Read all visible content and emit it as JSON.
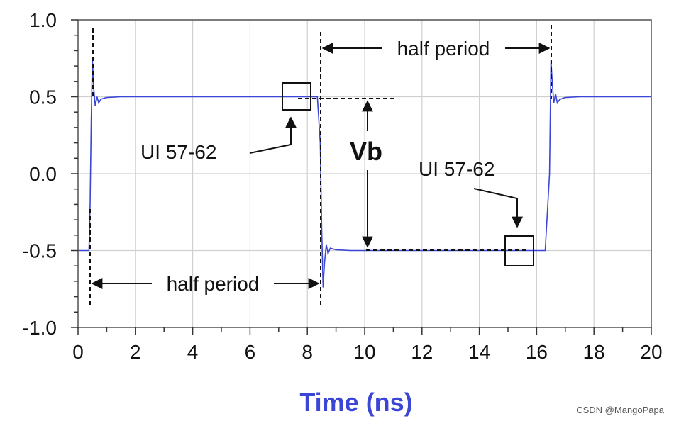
{
  "chart_data": {
    "type": "line",
    "title": "",
    "xlabel": "Time (ns)",
    "ylabel": "",
    "xlim": [
      0,
      20
    ],
    "ylim": [
      -1.0,
      1.0
    ],
    "grid": true,
    "x_ticks": [
      0,
      2,
      4,
      6,
      8,
      10,
      12,
      14,
      16,
      18,
      20
    ],
    "x_tick_labels": [
      "0",
      "2",
      "4",
      "6",
      "8",
      "10",
      "12",
      "14",
      "16",
      "18",
      "20"
    ],
    "y_ticks": [
      1.0,
      0.5,
      0.0,
      -0.5,
      -1.0
    ],
    "y_tick_labels": [
      "1.0",
      "0.5",
      "0.0",
      "-0.5",
      "-1.0"
    ],
    "series": [
      {
        "color": "#3b46d6",
        "x": [
          0,
          0.38,
          0.42,
          0.46,
          0.5,
          0.55,
          0.6,
          0.66,
          0.72,
          0.8,
          0.9,
          1.0,
          1.5,
          4.0,
          8.35,
          8.45,
          8.5,
          8.55,
          8.6,
          8.66,
          8.72,
          8.8,
          8.9,
          9.0,
          9.5,
          12.0,
          16.3,
          16.45,
          16.5,
          16.55,
          16.6,
          16.66,
          16.72,
          16.8,
          16.9,
          17.0,
          17.5,
          20.0
        ],
        "y": [
          -0.5,
          -0.5,
          -0.2,
          0.35,
          0.74,
          0.55,
          0.44,
          0.5,
          0.46,
          0.485,
          0.49,
          0.495,
          0.5,
          0.5,
          0.5,
          0.2,
          -0.35,
          -0.74,
          -0.58,
          -0.46,
          -0.52,
          -0.485,
          -0.49,
          -0.495,
          -0.5,
          -0.5,
          -0.5,
          0.0,
          0.74,
          0.58,
          0.46,
          0.52,
          0.46,
          0.48,
          0.49,
          0.495,
          0.5,
          0.5
        ]
      }
    ],
    "annotations": {
      "half_period": "half period",
      "ui_label": "UI 57-62",
      "vb": "Vb"
    }
  },
  "watermark": "CSDN @MangoPapa"
}
